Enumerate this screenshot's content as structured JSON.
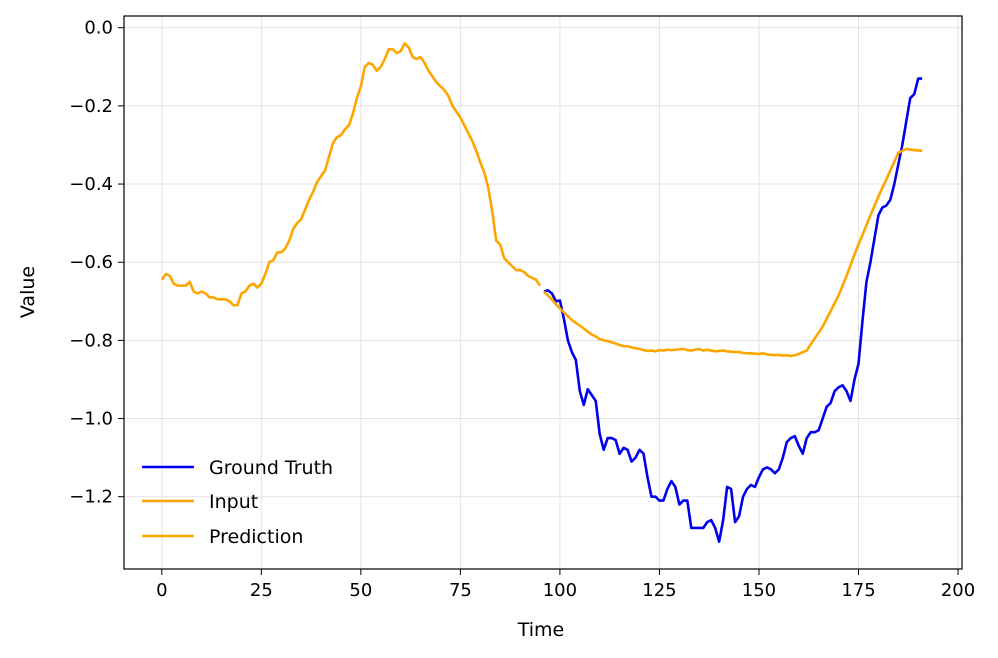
{
  "chart_data": {
    "type": "line",
    "xlabel": "Time",
    "ylabel": "Value",
    "xlim": [
      -9.5,
      201
    ],
    "ylim": [
      -1.385,
      0.03
    ],
    "x_ticks": [
      0,
      25,
      50,
      75,
      100,
      125,
      150,
      175,
      200
    ],
    "x_tick_labels": [
      "0",
      "25",
      "50",
      "75",
      "100",
      "125",
      "150",
      "175",
      "200"
    ],
    "y_ticks": [
      0.0,
      -0.2,
      -0.4,
      -0.6,
      -0.8,
      -1.0,
      -1.2
    ],
    "y_tick_labels": [
      "0.0",
      "−0.2",
      "−0.4",
      "−0.6",
      "−0.8",
      "−1.0",
      "−1.2"
    ],
    "grid": true,
    "legend_position": "lower-left",
    "legend": [
      "Ground Truth",
      "Input",
      "Prediction"
    ],
    "colors": {
      "ground_truth": "#0000ee",
      "input": "#ffa500",
      "prediction": "#ffa500"
    },
    "series": [
      {
        "name": "Ground Truth",
        "x": [
          96,
          97,
          98,
          99,
          100,
          101,
          102,
          103,
          104,
          105,
          106,
          107,
          108,
          109,
          110,
          111,
          112,
          113,
          114,
          115,
          116,
          117,
          118,
          119,
          120,
          121,
          122,
          123,
          124,
          125,
          126,
          127,
          128,
          129,
          130,
          131,
          132,
          133,
          134,
          135,
          136,
          137,
          138,
          139,
          140,
          141,
          142,
          143,
          144,
          145,
          146,
          147,
          148,
          149,
          150,
          151,
          152,
          153,
          154,
          155,
          156,
          157,
          158,
          159,
          160,
          161,
          162,
          163,
          164,
          165,
          166,
          167,
          168,
          169,
          170,
          171,
          172,
          173,
          174,
          175,
          176,
          177,
          178,
          179,
          180,
          181,
          182,
          183,
          184,
          185,
          186,
          187,
          188,
          189,
          190,
          191
        ],
        "values": [
          -0.675,
          -0.672,
          -0.68,
          -0.7,
          -0.698,
          -0.745,
          -0.8,
          -0.83,
          -0.85,
          -0.93,
          -0.965,
          -0.925,
          -0.94,
          -0.955,
          -1.04,
          -1.08,
          -1.05,
          -1.05,
          -1.055,
          -1.09,
          -1.075,
          -1.08,
          -1.11,
          -1.1,
          -1.08,
          -1.09,
          -1.15,
          -1.2,
          -1.2,
          -1.21,
          -1.21,
          -1.18,
          -1.16,
          -1.175,
          -1.22,
          -1.21,
          -1.21,
          -1.28,
          -1.28,
          -1.28,
          -1.28,
          -1.265,
          -1.26,
          -1.28,
          -1.315,
          -1.26,
          -1.175,
          -1.18,
          -1.265,
          -1.25,
          -1.2,
          -1.18,
          -1.17,
          -1.175,
          -1.15,
          -1.13,
          -1.125,
          -1.13,
          -1.14,
          -1.13,
          -1.1,
          -1.06,
          -1.05,
          -1.045,
          -1.07,
          -1.09,
          -1.05,
          -1.035,
          -1.035,
          -1.03,
          -1.0,
          -0.97,
          -0.96,
          -0.93,
          -0.92,
          -0.915,
          -0.93,
          -0.955,
          -0.9,
          -0.86,
          -0.75,
          -0.65,
          -0.6,
          -0.54,
          -0.48,
          -0.46,
          -0.455,
          -0.44,
          -0.4,
          -0.35,
          -0.3,
          -0.24,
          -0.18,
          -0.17,
          -0.13,
          -0.13
        ]
      },
      {
        "name": "Input",
        "x": [
          0,
          1,
          2,
          3,
          4,
          5,
          6,
          7,
          8,
          9,
          10,
          11,
          12,
          13,
          14,
          15,
          16,
          17,
          18,
          19,
          20,
          21,
          22,
          23,
          24,
          25,
          26,
          27,
          28,
          29,
          30,
          31,
          32,
          33,
          34,
          35,
          36,
          37,
          38,
          39,
          40,
          41,
          42,
          43,
          44,
          45,
          46,
          47,
          48,
          49,
          50,
          51,
          52,
          53,
          54,
          55,
          56,
          57,
          58,
          59,
          60,
          61,
          62,
          63,
          64,
          65,
          66,
          67,
          68,
          69,
          70,
          71,
          72,
          73,
          74,
          75,
          76,
          77,
          78,
          79,
          80,
          81,
          82,
          83,
          84,
          85,
          86,
          87,
          88,
          89,
          90,
          91,
          92,
          93,
          94,
          95
        ],
        "values": [
          -0.645,
          -0.63,
          -0.635,
          -0.655,
          -0.66,
          -0.66,
          -0.66,
          -0.65,
          -0.675,
          -0.68,
          -0.675,
          -0.68,
          -0.69,
          -0.69,
          -0.695,
          -0.695,
          -0.695,
          -0.7,
          -0.71,
          -0.71,
          -0.68,
          -0.675,
          -0.66,
          -0.655,
          -0.665,
          -0.655,
          -0.63,
          -0.6,
          -0.595,
          -0.575,
          -0.575,
          -0.565,
          -0.545,
          -0.515,
          -0.5,
          -0.49,
          -0.465,
          -0.44,
          -0.42,
          -0.395,
          -0.38,
          -0.365,
          -0.33,
          -0.295,
          -0.28,
          -0.275,
          -0.26,
          -0.25,
          -0.22,
          -0.18,
          -0.15,
          -0.1,
          -0.09,
          -0.095,
          -0.11,
          -0.1,
          -0.08,
          -0.055,
          -0.055,
          -0.065,
          -0.06,
          -0.04,
          -0.05,
          -0.075,
          -0.08,
          -0.075,
          -0.09,
          -0.11,
          -0.125,
          -0.14,
          -0.15,
          -0.16,
          -0.175,
          -0.2,
          -0.215,
          -0.23,
          -0.25,
          -0.27,
          -0.29,
          -0.315,
          -0.345,
          -0.37,
          -0.41,
          -0.47,
          -0.545,
          -0.555,
          -0.59,
          -0.6,
          -0.61,
          -0.62,
          -0.62,
          -0.625,
          -0.635,
          -0.64,
          -0.645,
          -0.66
        ]
      },
      {
        "name": "Prediction",
        "x": [
          96,
          97,
          98,
          99,
          100,
          101,
          102,
          103,
          104,
          105,
          106,
          107,
          108,
          109,
          110,
          111,
          112,
          113,
          114,
          115,
          116,
          117,
          118,
          119,
          120,
          121,
          122,
          123,
          124,
          125,
          126,
          127,
          128,
          129,
          130,
          131,
          132,
          133,
          134,
          135,
          136,
          137,
          138,
          139,
          140,
          141,
          142,
          143,
          144,
          145,
          146,
          147,
          148,
          149,
          150,
          151,
          152,
          153,
          154,
          155,
          156,
          157,
          158,
          159,
          160,
          161,
          162,
          163,
          164,
          165,
          166,
          167,
          168,
          169,
          170,
          171,
          172,
          173,
          174,
          175,
          176,
          177,
          178,
          179,
          180,
          181,
          182,
          183,
          184,
          185,
          186,
          187,
          188,
          189,
          190,
          191
        ],
        "values": [
          -0.675,
          -0.685,
          -0.695,
          -0.708,
          -0.718,
          -0.728,
          -0.738,
          -0.748,
          -0.755,
          -0.762,
          -0.77,
          -0.778,
          -0.785,
          -0.79,
          -0.797,
          -0.8,
          -0.802,
          -0.805,
          -0.808,
          -0.812,
          -0.815,
          -0.815,
          -0.818,
          -0.82,
          -0.822,
          -0.825,
          -0.827,
          -0.826,
          -0.828,
          -0.825,
          -0.826,
          -0.824,
          -0.825,
          -0.824,
          -0.823,
          -0.822,
          -0.825,
          -0.826,
          -0.824,
          -0.822,
          -0.826,
          -0.824,
          -0.826,
          -0.828,
          -0.827,
          -0.826,
          -0.828,
          -0.829,
          -0.83,
          -0.83,
          -0.832,
          -0.833,
          -0.833,
          -0.834,
          -0.835,
          -0.833,
          -0.836,
          -0.837,
          -0.838,
          -0.837,
          -0.839,
          -0.838,
          -0.84,
          -0.838,
          -0.835,
          -0.83,
          -0.826,
          -0.81,
          -0.795,
          -0.78,
          -0.765,
          -0.745,
          -0.725,
          -0.705,
          -0.685,
          -0.66,
          -0.635,
          -0.608,
          -0.58,
          -0.555,
          -0.53,
          -0.505,
          -0.48,
          -0.456,
          -0.432,
          -0.41,
          -0.388,
          -0.365,
          -0.343,
          -0.32,
          -0.315,
          -0.31,
          -0.312,
          -0.313,
          -0.314,
          -0.315
        ]
      }
    ]
  }
}
